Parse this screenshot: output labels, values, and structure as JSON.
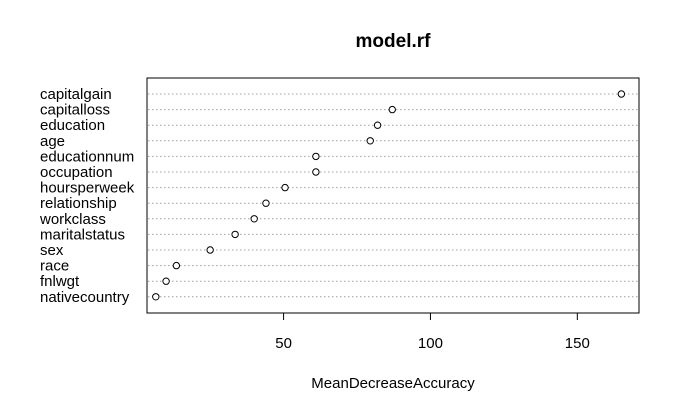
{
  "chart_data": {
    "type": "dotchart",
    "title": "model.rf",
    "xlabel": "MeanDecreaseAccuracy",
    "ylabel": "",
    "xlim": [
      3.5,
      171
    ],
    "xticks": [
      50,
      100,
      150
    ],
    "grid": "dotted horizontal guide lines",
    "categories": [
      "capitalgain",
      "capitalloss",
      "education",
      "age",
      "educationnum",
      "occupation",
      "hoursperweek",
      "relationship",
      "workclass",
      "maritalstatus",
      "sex",
      "race",
      "fnlwgt",
      "nativecountry"
    ],
    "values": [
      165,
      87,
      82,
      79.5,
      61,
      61,
      50.5,
      44,
      40,
      33.5,
      25,
      13.5,
      10,
      6.5
    ]
  }
}
